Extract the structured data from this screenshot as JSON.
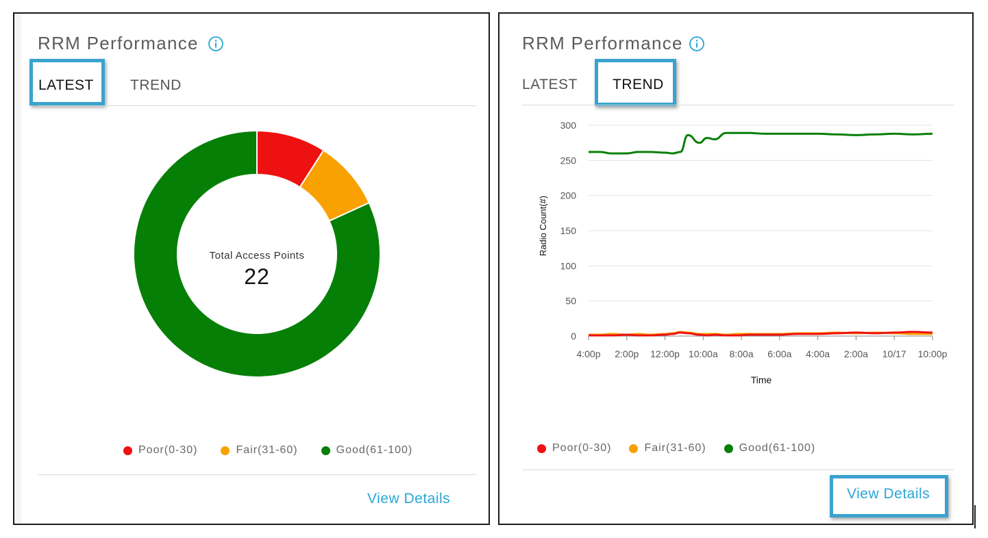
{
  "left_panel": {
    "title": "RRM Performance",
    "tabs": [
      {
        "label": "LATEST"
      },
      {
        "label": "TREND"
      }
    ],
    "donut": {
      "center_label": "Total Access Points",
      "center_value": "22"
    },
    "legend": [
      {
        "label": "Poor(0-30)",
        "color": "#ee1111"
      },
      {
        "label": "Fair(31-60)",
        "color": "#f9a100"
      },
      {
        "label": "Good(61-100)",
        "color": "#067f06"
      }
    ],
    "view_details": "View Details"
  },
  "right_panel": {
    "title": "RRM Performance",
    "tabs": [
      {
        "label": "LATEST"
      },
      {
        "label": "TREND"
      }
    ],
    "legend": [
      {
        "label": "Poor(0-30)",
        "color": "#ee1111"
      },
      {
        "label": "Fair(31-60)",
        "color": "#f9a100"
      },
      {
        "label": "Good(61-100)",
        "color": "#067f06"
      }
    ],
    "view_details": "View Details"
  },
  "chart_data": [
    {
      "type": "pie",
      "title": "Total Access Points",
      "total": 22,
      "categories": [
        "Poor(0-30)",
        "Fair(31-60)",
        "Good(61-100)"
      ],
      "values": [
        2,
        2,
        18
      ],
      "colors": [
        "#ee1111",
        "#f9a100",
        "#067f06"
      ]
    },
    {
      "type": "line",
      "xlabel": "Time",
      "ylabel": "Radio Count(#)",
      "ylim": [
        0,
        300
      ],
      "yticks": [
        0,
        50,
        100,
        150,
        200,
        250,
        300
      ],
      "xticks": [
        "4:00p",
        "2:00p",
        "12:00p",
        "10:00a",
        "8:00a",
        "6:00a",
        "4:00a",
        "2:00a",
        "10/17",
        "10:00p"
      ],
      "x": [
        0,
        0.3,
        0.6,
        1,
        1.3,
        1.6,
        2,
        2.2,
        2.4,
        2.6,
        2.9,
        3.1,
        3.3,
        3.6,
        3.9,
        4.2,
        4.6,
        5,
        5.5,
        6,
        6.5,
        7,
        7.5,
        8,
        8.5,
        9
      ],
      "series": [
        {
          "name": "Good(61-100)",
          "color": "#067f06",
          "values": [
            262,
            262,
            260,
            260,
            262,
            262,
            261,
            260,
            262,
            286,
            275,
            282,
            280,
            289,
            289,
            289,
            288,
            288,
            288,
            288,
            287,
            286,
            287,
            288,
            287,
            288
          ]
        },
        {
          "name": "Fair(31-60)",
          "color": "#f9a100",
          "values": [
            2,
            2,
            3,
            2,
            3,
            2,
            3,
            4,
            6,
            5,
            3,
            3,
            3,
            2,
            3,
            3,
            3,
            3,
            4,
            4,
            5,
            4,
            5,
            4,
            3,
            3
          ]
        },
        {
          "name": "Poor(0-30)",
          "color": "#ee1111",
          "values": [
            1,
            1,
            1,
            2,
            1,
            1,
            2,
            3,
            5,
            4,
            2,
            1,
            2,
            1,
            1,
            2,
            2,
            2,
            3,
            3,
            4,
            5,
            4,
            5,
            6,
            5
          ]
        }
      ]
    }
  ]
}
